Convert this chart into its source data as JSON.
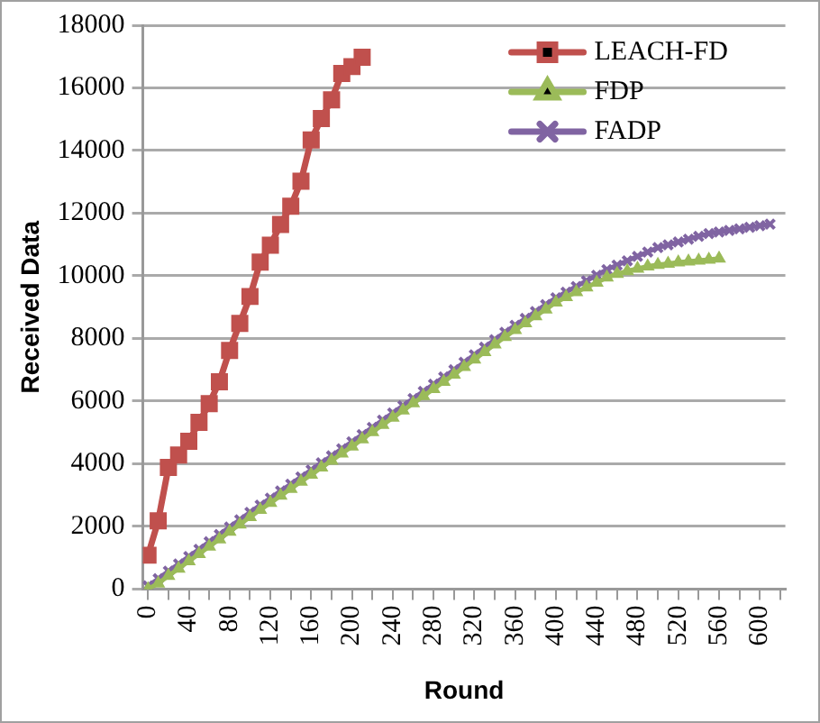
{
  "chart_data": {
    "type": "line",
    "xlabel": "Round",
    "ylabel": "Received Data",
    "xlim": [
      -5,
      625
    ],
    "ylim": [
      0,
      18000
    ],
    "xticks": [
      0,
      {
        "value": 20,
        "label": null
      },
      40,
      {
        "value": 60,
        "label": null
      },
      80,
      {
        "value": 100,
        "label": null
      },
      120,
      {
        "value": 140,
        "label": null
      },
      160,
      {
        "value": 180,
        "label": null
      },
      200,
      {
        "value": 220,
        "label": null
      },
      240,
      {
        "value": 260,
        "label": null
      },
      280,
      {
        "value": 300,
        "label": null
      },
      320,
      {
        "value": 340,
        "label": null
      },
      360,
      {
        "value": 380,
        "label": null
      },
      400,
      {
        "value": 420,
        "label": null
      },
      440,
      {
        "value": 460,
        "label": null
      },
      480,
      {
        "value": 500,
        "label": null
      },
      520,
      {
        "value": 540,
        "label": null
      },
      560,
      {
        "value": 580,
        "label": null
      },
      600,
      {
        "value": 620,
        "label": null
      }
    ],
    "yticks": [
      0,
      2000,
      4000,
      6000,
      8000,
      10000,
      12000,
      14000,
      16000,
      18000
    ],
    "grid": "y",
    "legend": "top right",
    "line_style": "solid",
    "series": [
      {
        "name": "LEACH-FD",
        "color": "#c0504d",
        "marker": "square",
        "x": [
          0,
          10,
          20,
          30,
          40,
          50,
          60,
          70,
          80,
          90,
          100,
          110,
          120,
          130,
          140,
          150,
          160,
          170,
          180,
          190,
          200,
          210
        ],
        "values": [
          1080,
          2180,
          3880,
          4280,
          4720,
          5320,
          5920,
          6620,
          7620,
          8480,
          9340,
          10440,
          10980,
          11640,
          12220,
          13020,
          14340,
          15020,
          15620,
          16460,
          16680,
          16980
        ]
      },
      {
        "name": "FDP",
        "color": "#9bbb59",
        "marker": "triangle",
        "x": [
          0,
          10,
          20,
          30,
          40,
          50,
          60,
          70,
          80,
          90,
          100,
          110,
          120,
          130,
          140,
          150,
          160,
          170,
          180,
          190,
          200,
          210,
          220,
          230,
          240,
          250,
          260,
          270,
          280,
          290,
          300,
          310,
          320,
          330,
          340,
          350,
          360,
          370,
          380,
          390,
          400,
          410,
          420,
          430,
          440,
          450,
          460,
          470,
          480,
          490,
          500,
          510,
          520,
          530,
          540,
          550,
          560
        ],
        "values": [
          0,
          180,
          420,
          650,
          890,
          1120,
          1360,
          1590,
          1830,
          2060,
          2300,
          2530,
          2750,
          2980,
          3200,
          3430,
          3650,
          3880,
          4100,
          4330,
          4550,
          4780,
          5010,
          5240,
          5470,
          5700,
          5930,
          6160,
          6390,
          6620,
          6850,
          7090,
          7330,
          7570,
          7810,
          8050,
          8270,
          8490,
          8710,
          8930,
          9150,
          9320,
          9480,
          9630,
          9780,
          9950,
          10060,
          10150,
          10230,
          10300,
          10350,
          10390,
          10430,
          10460,
          10490,
          10520,
          10550
        ]
      },
      {
        "name": "FADP",
        "color": "#8064a2",
        "marker": "cross",
        "x": [
          0,
          10,
          20,
          30,
          40,
          50,
          60,
          70,
          80,
          90,
          100,
          110,
          120,
          130,
          140,
          150,
          160,
          170,
          180,
          190,
          200,
          210,
          220,
          230,
          240,
          250,
          260,
          270,
          280,
          290,
          300,
          310,
          320,
          330,
          340,
          350,
          360,
          370,
          380,
          390,
          400,
          410,
          420,
          430,
          440,
          450,
          460,
          470,
          480,
          490,
          500,
          510,
          520,
          530,
          540,
          550,
          560,
          570,
          580,
          590,
          600,
          610
        ],
        "values": [
          100,
          330,
          570,
          800,
          1040,
          1270,
          1510,
          1740,
          1980,
          2210,
          2450,
          2680,
          2900,
          3130,
          3350,
          3580,
          3800,
          4030,
          4250,
          4480,
          4700,
          4930,
          5160,
          5390,
          5620,
          5850,
          6080,
          6310,
          6540,
          6770,
          7000,
          7240,
          7480,
          7720,
          7960,
          8200,
          8420,
          8640,
          8860,
          9080,
          9300,
          9480,
          9660,
          9840,
          10020,
          10200,
          10340,
          10480,
          10620,
          10760,
          10900,
          10990,
          11080,
          11170,
          11260,
          11350,
          11400,
          11450,
          11500,
          11550,
          11600,
          11650
        ]
      }
    ]
  }
}
